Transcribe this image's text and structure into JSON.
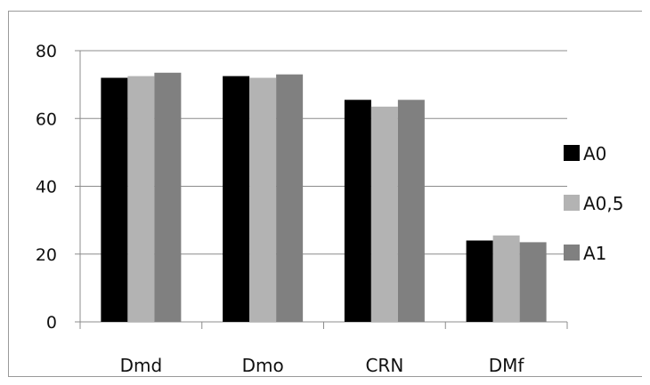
{
  "chart_data": {
    "type": "bar",
    "categories": [
      "Dmd",
      "Dmo",
      "CRN",
      "DMf"
    ],
    "series": [
      {
        "name": "A0",
        "color": "#000000",
        "values": [
          72,
          72.5,
          65.5,
          24
        ]
      },
      {
        "name": "A0,5",
        "color": "#b3b3b3",
        "values": [
          72.5,
          72,
          63.5,
          25.5
        ]
      },
      {
        "name": "A1",
        "color": "#808080",
        "values": [
          73.5,
          73,
          65.5,
          23.5
        ]
      }
    ],
    "title": "",
    "xlabel": "",
    "ylabel": "",
    "ylim": [
      0,
      80
    ],
    "yticks": [
      0,
      20,
      40,
      60,
      80
    ],
    "grid": "horizontal",
    "legend": "right"
  }
}
